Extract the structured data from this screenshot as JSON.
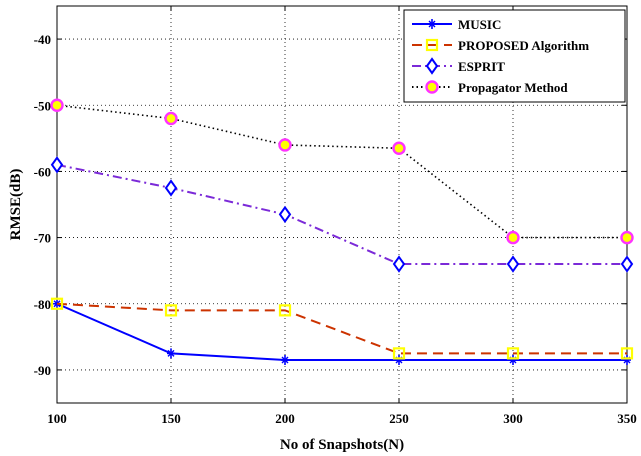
{
  "chart_data": {
    "type": "line",
    "xlabel": "No of Snapshots(N)",
    "ylabel": "RMSE(dB)",
    "x": [
      100,
      150,
      200,
      250,
      300,
      350
    ],
    "xlim": [
      100,
      350
    ],
    "ylim": [
      -95,
      -35
    ],
    "xticks": [
      100,
      150,
      200,
      250,
      300,
      350
    ],
    "yticks": [
      -90,
      -80,
      -70,
      -60,
      -50,
      -40
    ],
    "grid": true,
    "legend_position": "top-right",
    "series": [
      {
        "name": "MUSIC",
        "values": [
          -80,
          -87.5,
          -88.5,
          -88.5,
          -88.5,
          -88.5
        ],
        "color": "#0000ff",
        "line_style": "solid",
        "marker": "star"
      },
      {
        "name": "PROPOSED Algorithm",
        "values": [
          -80,
          -81,
          -81,
          -87.5,
          -87.5,
          -87.5
        ],
        "color": "#cc3300",
        "marker_color": "#ffff00",
        "line_style": "dashed",
        "marker": "square"
      },
      {
        "name": "ESPRIT",
        "values": [
          -59,
          -62.5,
          -66.5,
          -74,
          -74,
          -74
        ],
        "color": "#7b2ad8",
        "marker_color": "#0000ff",
        "line_style": "dashdot",
        "marker": "diamond"
      },
      {
        "name": "Propagator Method",
        "values": [
          -50,
          -52,
          -56,
          -56.5,
          -70,
          -70
        ],
        "color": "#000000",
        "marker_color": "#ff33ff",
        "marker_fill": "#ffff00",
        "line_style": "dotted",
        "marker": "circle"
      }
    ]
  }
}
